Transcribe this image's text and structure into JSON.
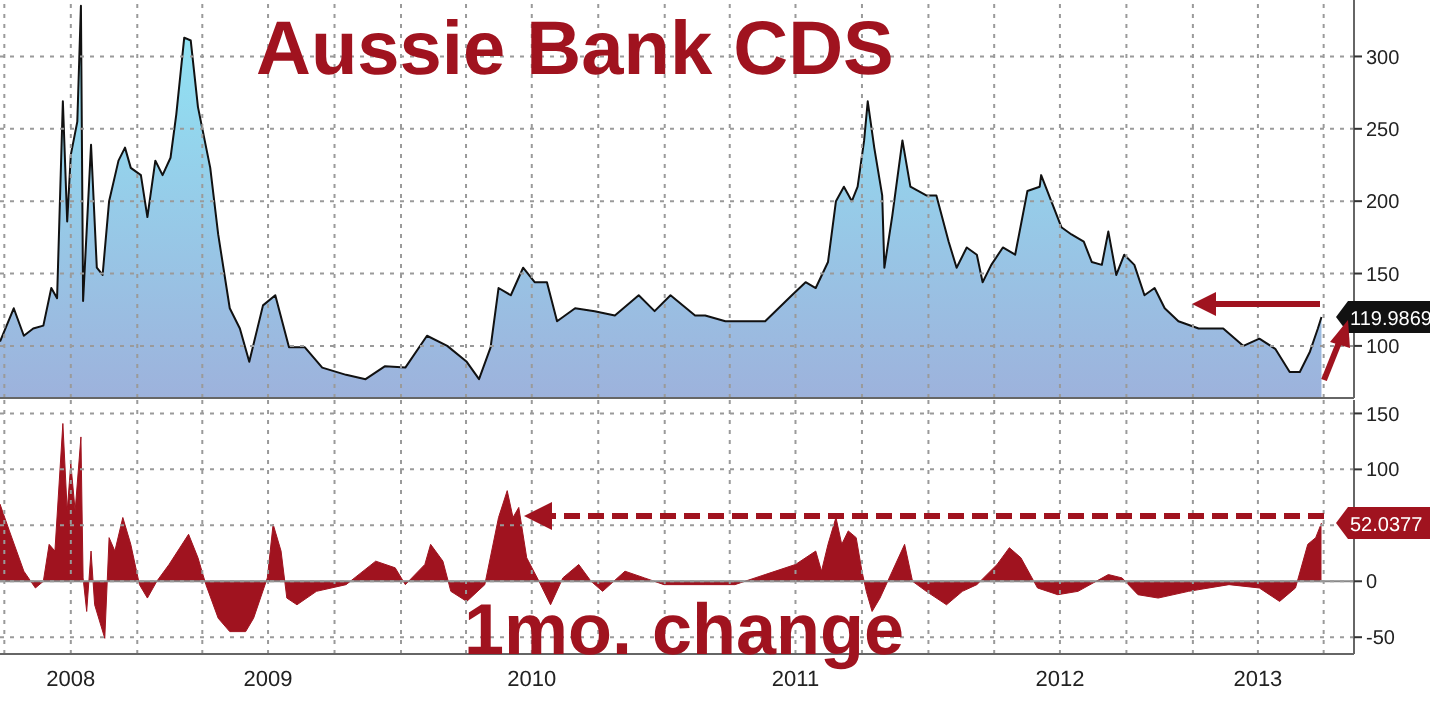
{
  "chart_data": [
    {
      "type": "area",
      "title": "Aussie Bank CDS",
      "grid": true,
      "tick_labels": "y",
      "xlim": [
        "2008-06-25",
        "2013-08-12"
      ],
      "ylim": [
        64,
        339
      ],
      "yticks": [
        100,
        150,
        200,
        250,
        300
      ],
      "xticks": [
        {
          "value": "2008-07-01",
          "label": null
        },
        {
          "value": "2008-10-01",
          "label": null
        },
        {
          "value": "2009-01-01",
          "label": null
        },
        {
          "value": "2009-04-01",
          "label": null
        },
        {
          "value": "2009-07-01",
          "label": null
        },
        {
          "value": "2009-10-01",
          "label": null
        },
        {
          "value": "2010-01-01",
          "label": null
        },
        {
          "value": "2010-04-01",
          "label": null
        },
        {
          "value": "2010-07-01",
          "label": null
        },
        {
          "value": "2010-10-01",
          "label": null
        },
        {
          "value": "2011-01-01",
          "label": null
        },
        {
          "value": "2011-04-01",
          "label": null
        },
        {
          "value": "2011-07-01",
          "label": null
        },
        {
          "value": "2011-10-01",
          "label": null
        },
        {
          "value": "2012-01-01",
          "label": null
        },
        {
          "value": "2012-04-01",
          "label": null
        },
        {
          "value": "2012-07-01",
          "label": null
        },
        {
          "value": "2012-10-01",
          "label": null
        },
        {
          "value": "2013-01-01",
          "label": null
        },
        {
          "value": "2013-04-01",
          "label": null
        },
        {
          "value": "2013-07-01",
          "label": null
        }
      ],
      "x": [
        "2008-06-25",
        "2008-07-14",
        "2008-07-28",
        "2008-08-10",
        "2008-08-24",
        "2008-09-04",
        "2008-09-12",
        "2008-09-20",
        "2008-09-26",
        "2008-10-01",
        "2008-10-10",
        "2008-10-15",
        "2008-10-18",
        "2008-10-29",
        "2008-11-06",
        "2008-11-14",
        "2008-11-23",
        "2008-12-06",
        "2008-12-15",
        "2008-12-23",
        "2009-01-06",
        "2009-01-15",
        "2009-01-26",
        "2009-02-05",
        "2009-02-16",
        "2009-02-24",
        "2009-03-07",
        "2009-03-16",
        "2009-03-26",
        "2009-04-12",
        "2009-04-23",
        "2009-05-09",
        "2009-05-23",
        "2009-06-05",
        "2009-06-24",
        "2009-07-11",
        "2009-07-30",
        "2009-08-21",
        "2009-09-14",
        "2009-10-17",
        "2009-11-13",
        "2009-12-10",
        "2010-01-07",
        "2010-02-06",
        "2010-03-06",
        "2010-04-02",
        "2010-04-19",
        "2010-05-05",
        "2010-05-16",
        "2010-06-02",
        "2010-06-19",
        "2010-07-05",
        "2010-07-22",
        "2010-08-05",
        "2010-08-30",
        "2010-09-26",
        "2010-10-24",
        "2010-11-26",
        "2010-12-18",
        "2011-01-09",
        "2011-02-12",
        "2011-02-26",
        "2011-03-26",
        "2011-05-20",
        "2011-06-26",
        "2011-07-15",
        "2011-07-29",
        "2011-08-15",
        "2011-08-26",
        "2011-09-06",
        "2011-09-17",
        "2011-09-25",
        "2011-10-04",
        "2011-10-09",
        "2011-10-18",
        "2011-10-29",
        "2011-11-01",
        "2011-11-12",
        "2011-11-26",
        "2011-12-07",
        "2011-12-29",
        "2012-01-12",
        "2012-01-29",
        "2012-02-09",
        "2012-02-23",
        "2012-03-08",
        "2012-03-16",
        "2012-03-28",
        "2012-04-13",
        "2012-04-30",
        "2012-05-17",
        "2012-06-03",
        "2012-06-05",
        "2012-06-19",
        "2012-07-03",
        "2012-07-17",
        "2012-08-03",
        "2012-08-14",
        "2012-08-28",
        "2012-09-06",
        "2012-09-17",
        "2012-09-28",
        "2012-10-12",
        "2012-10-26",
        "2012-11-09",
        "2012-11-23",
        "2012-12-12",
        "2013-01-09",
        "2013-02-12",
        "2013-03-12",
        "2013-04-03",
        "2013-04-25",
        "2013-05-15",
        "2013-05-29",
        "2013-06-12",
        "2013-06-23",
        "2013-06-28"
      ],
      "series": [
        {
          "color": "#9db2dc",
          "values": [
            103,
            126,
            107,
            112,
            114,
            140,
            133,
            269,
            186,
            232,
            255,
            335,
            131,
            239,
            154,
            149,
            200,
            228,
            237,
            223,
            218,
            189,
            228,
            218,
            230,
            260,
            313,
            311,
            265,
            223,
            177,
            126,
            112,
            89,
            128,
            135,
            99,
            99,
            85,
            80,
            77,
            86,
            85,
            107,
            100,
            89,
            77,
            99,
            140,
            135,
            154,
            144,
            144,
            117,
            126,
            124,
            121,
            135,
            124,
            135,
            121,
            121,
            117,
            117,
            135,
            144,
            140,
            158,
            200,
            210,
            200,
            210,
            242,
            269,
            237,
            204,
            154,
            190,
            242,
            210,
            204,
            204,
            172,
            154,
            168,
            163,
            144,
            156,
            168,
            163,
            207,
            210,
            218,
            200,
            182,
            177,
            172,
            158,
            156,
            179,
            149,
            163,
            156,
            135,
            140,
            126,
            117,
            112,
            112,
            100,
            105,
            98,
            82,
            82,
            96,
            112,
            119.9869
          ]
        }
      ],
      "annotations": [
        {
          "text": "119.9869",
          "x": "2013-06-28",
          "y": 119.9869
        }
      ]
    },
    {
      "type": "area",
      "title": "1mo. change",
      "grid": true,
      "xlim": [
        "2008-06-25",
        "2013-08-12"
      ],
      "ylim": [
        -65,
        162
      ],
      "yticks": [
        -50,
        0,
        {
          "value": 50,
          "label": null
        },
        100,
        150
      ],
      "xticks": [
        {
          "value": "2008-07-01",
          "label": null
        },
        {
          "value": "2008-10-01",
          "label": "2008"
        },
        {
          "value": "2009-01-01",
          "label": null
        },
        {
          "value": "2009-04-01",
          "label": null
        },
        {
          "value": "2009-07-01",
          "label": "2009"
        },
        {
          "value": "2009-10-01",
          "label": null
        },
        {
          "value": "2010-01-01",
          "label": null
        },
        {
          "value": "2010-04-01",
          "label": null
        },
        {
          "value": "2010-07-01",
          "label": "2010"
        },
        {
          "value": "2010-10-01",
          "label": null
        },
        {
          "value": "2011-01-01",
          "label": null
        },
        {
          "value": "2011-04-01",
          "label": null
        },
        {
          "value": "2011-07-01",
          "label": "2011"
        },
        {
          "value": "2011-10-01",
          "label": null
        },
        {
          "value": "2012-01-01",
          "label": null
        },
        {
          "value": "2012-04-01",
          "label": null
        },
        {
          "value": "2012-07-01",
          "label": "2012"
        },
        {
          "value": "2012-10-01",
          "label": null
        },
        {
          "value": "2013-01-01",
          "label": null
        },
        {
          "value": "2013-04-01",
          "label": "2013"
        },
        {
          "value": "2013-07-01",
          "label": null
        }
      ],
      "x": [
        "2008-06-25",
        "2008-07-08",
        "2008-07-28",
        "2008-08-13",
        "2008-08-24",
        "2008-09-01",
        "2008-09-09",
        "2008-09-20",
        "2008-09-26",
        "2008-10-01",
        "2008-10-07",
        "2008-10-15",
        "2008-10-18",
        "2008-10-23",
        "2008-10-29",
        "2008-11-03",
        "2008-11-17",
        "2008-11-23",
        "2008-12-01",
        "2008-12-12",
        "2008-12-23",
        "2009-01-04",
        "2009-01-15",
        "2009-01-28",
        "2009-02-14",
        "2009-03-13",
        "2009-03-26",
        "2009-04-06",
        "2009-04-23",
        "2009-05-09",
        "2009-05-31",
        "2009-06-11",
        "2009-06-30",
        "2009-07-08",
        "2009-07-19",
        "2009-07-27",
        "2009-08-10",
        "2009-09-06",
        "2009-10-17",
        "2009-11-27",
        "2009-12-24",
        "2010-01-07",
        "2010-02-03",
        "2010-02-11",
        "2010-02-28",
        "2010-03-11",
        "2010-04-02",
        "2010-04-27",
        "2010-05-16",
        "2010-05-28",
        "2010-06-05",
        "2010-06-13",
        "2010-06-24",
        "2010-07-11",
        "2010-07-27",
        "2010-08-13",
        "2010-09-04",
        "2010-09-21",
        "2010-10-07",
        "2010-11-07",
        "2010-12-04",
        "2010-12-31",
        "2011-02-26",
        "2011-04-08",
        "2011-05-20",
        "2011-07-01",
        "2011-07-29",
        "2011-08-06",
        "2011-08-15",
        "2011-08-26",
        "2011-09-03",
        "2011-09-12",
        "2011-09-23",
        "2011-10-01",
        "2011-10-07",
        "2011-10-15",
        "2011-10-26",
        "2011-11-12",
        "2011-11-29",
        "2011-12-10",
        "2011-12-29",
        "2012-01-26",
        "2012-02-17",
        "2012-03-08",
        "2012-04-05",
        "2012-04-22",
        "2012-05-08",
        "2012-05-31",
        "2012-06-28",
        "2012-07-26",
        "2012-09-06",
        "2012-09-25",
        "2012-10-17",
        "2012-11-14",
        "2012-12-26",
        "2013-02-20",
        "2013-04-03",
        "2013-05-01",
        "2013-05-23",
        "2013-06-09",
        "2013-06-20",
        "2013-06-28"
      ],
      "series": [
        {
          "color": "#a0131f",
          "values": [
            69,
            45,
            9,
            -6,
            0,
            33,
            27,
            141,
            63,
            105,
            63,
            129,
            3,
            -27,
            27,
            -21,
            -51,
            39,
            27,
            57,
            33,
            -3,
            -15,
            0,
            15,
            42,
            21,
            -3,
            -33,
            -45,
            -45,
            -33,
            3,
            51,
            27,
            -15,
            -21,
            -9,
            -3,
            18,
            12,
            -3,
            15,
            33,
            18,
            -9,
            -18,
            -3,
            57,
            81,
            57,
            66,
            21,
            0,
            -21,
            3,
            15,
            0,
            -9,
            9,
            3,
            -3,
            -3,
            -3,
            6,
            15,
            27,
            9,
            33,
            57,
            33,
            45,
            39,
            9,
            -9,
            -27,
            -15,
            9,
            33,
            0,
            -9,
            -21,
            -9,
            -3,
            15,
            30,
            21,
            -6,
            -12,
            -9,
            6,
            3,
            -12,
            -15,
            -9,
            -3,
            -6,
            -18,
            -6,
            33,
            39,
            52.0377
          ]
        }
      ],
      "ref_lines": [
        {
          "axis": "y",
          "value": 0,
          "color": "#888888"
        }
      ],
      "annotations": [
        {
          "text": "52.0377",
          "x": "2013-06-28",
          "y": 52.0377
        }
      ]
    }
  ]
}
